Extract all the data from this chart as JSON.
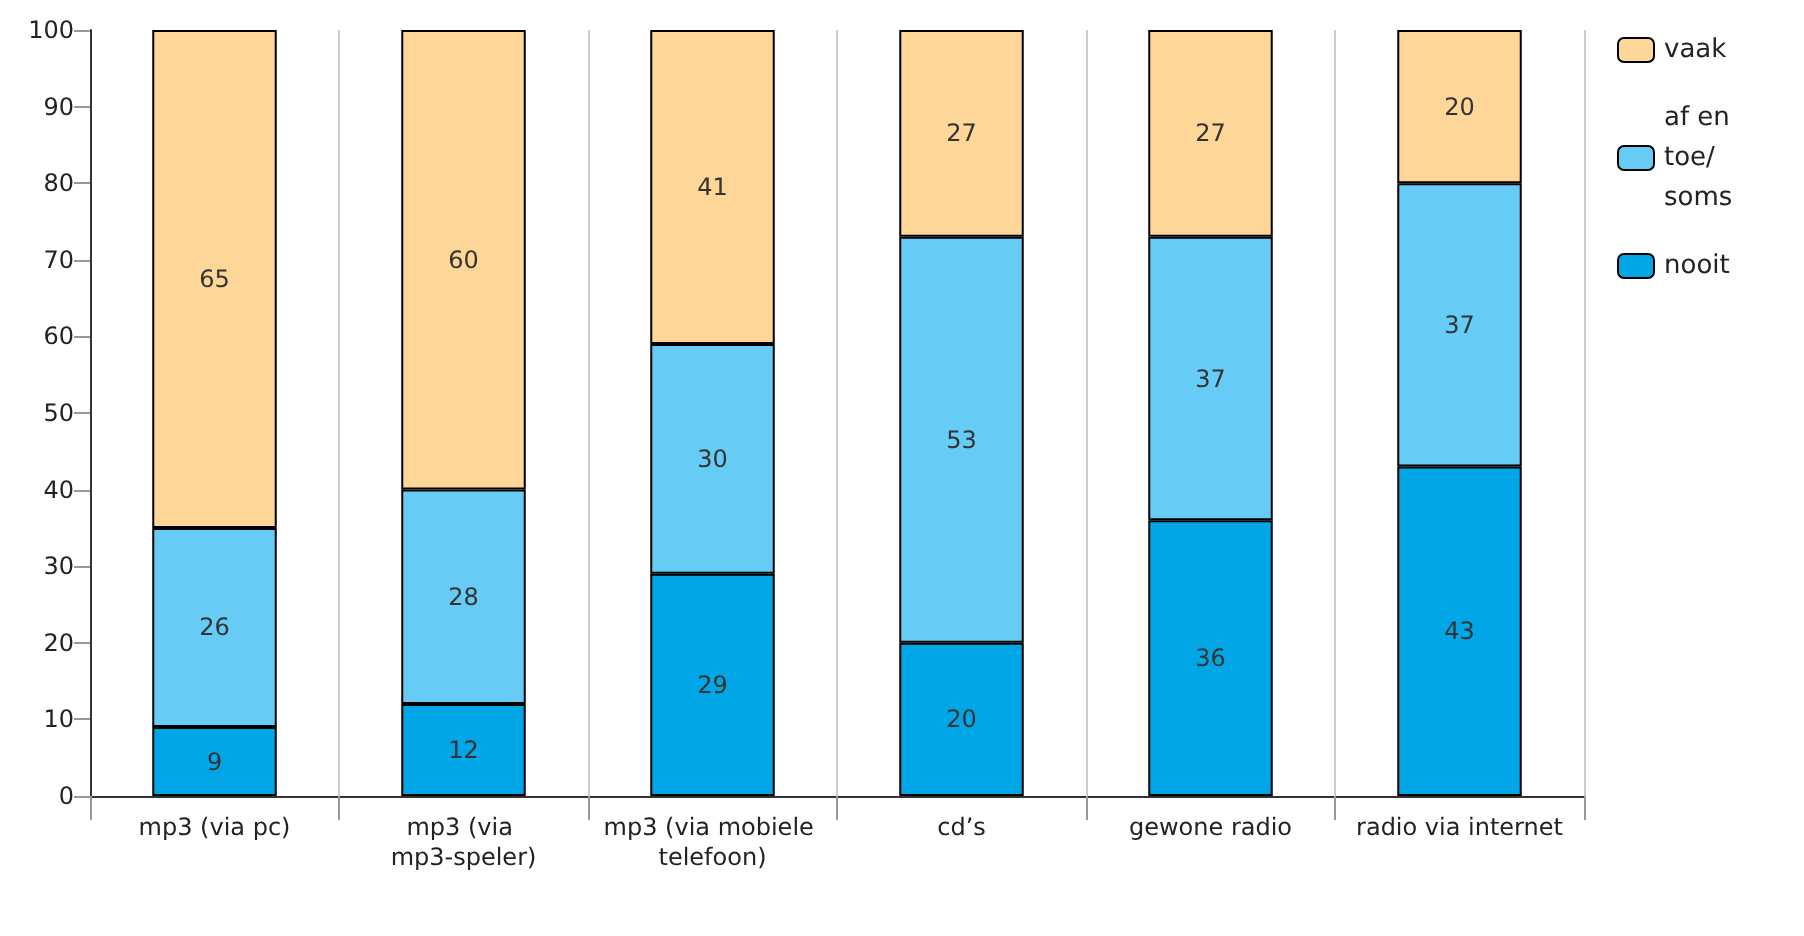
{
  "chart_data": {
    "type": "bar",
    "stacked": true,
    "categories": [
      "mp3 (via pc)",
      "mp3 (via mp3-speler)",
      "mp3 (via mobiele telefoon)",
      "cd’s",
      "gewone radio",
      "radio via internet"
    ],
    "series": [
      {
        "name": "nooit",
        "color": "#00a6e6",
        "values": [
          9,
          12,
          29,
          20,
          36,
          43
        ]
      },
      {
        "name": "af en toe/ soms",
        "color": "#66ccf5",
        "values": [
          26,
          28,
          30,
          53,
          37,
          37
        ]
      },
      {
        "name": "vaak",
        "color": "#fdd698",
        "values": [
          65,
          60,
          41,
          27,
          27,
          20
        ]
      }
    ],
    "ylim": [
      0,
      100
    ],
    "yticks": [
      0,
      10,
      20,
      30,
      40,
      50,
      60,
      70,
      80,
      90,
      100
    ],
    "grid": "x",
    "legend": "top right",
    "data_labels": true
  }
}
